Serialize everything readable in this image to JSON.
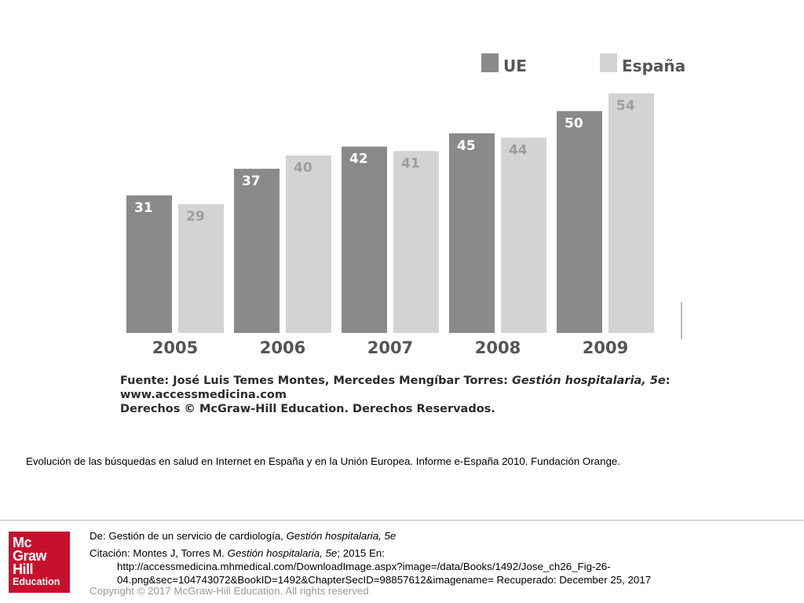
{
  "chart_data": {
    "type": "bar",
    "categories": [
      "2005",
      "2006",
      "2007",
      "2008",
      "2009"
    ],
    "series": [
      {
        "name": "UE",
        "values": [
          31,
          37,
          42,
          45,
          50
        ],
        "color": "#8a8a8a"
      },
      {
        "name": "España",
        "values": [
          29,
          40,
          41,
          44,
          54
        ],
        "color": "#d3d3d3"
      }
    ],
    "data_labels": true,
    "legend_position": "top-right",
    "ylim": [
      0,
      60
    ],
    "grid": false
  },
  "source": {
    "line1_prefix": "Fuente: José Luis Temes Montes, Mercedes Mengíbar Torres: ",
    "line1_book": "Gestión hospitalaria, 5e",
    "line1_suffix": ":",
    "line2": "www.accessmedicina.com",
    "line3": "Derechos © McGraw-Hill Education. Derechos Reservados."
  },
  "caption": "Evolución de las búsquedas en salud en Internet en España y en la Unión Europea. Informe e-España 2010. Fundación Orange.",
  "footer": {
    "logo": {
      "line1": "Mc",
      "line2": "Graw",
      "line3": "Hill",
      "line4": "Education",
      "color": "#c8102e"
    },
    "from_prefix": "De: Gestión de un servicio de cardiología, ",
    "from_book": "Gestión hospitalaria, 5e",
    "citation_prefix": "Citación: Montes J, Torres M. ",
    "citation_book": "Gestión hospitalaria, 5e",
    "citation_suffix": "; 2015 En:",
    "citation_url1": "http://accessmedicina.mhmedical.com/DownloadImage.aspx?image=/data/Books/1492/Jose_ch26_Fig-26-",
    "citation_url2": "04.png&sec=104743072&BookID=1492&ChapterSecID=98857612&imagename= Recuperado: December 25, 2017",
    "copyright": "Copyright © 2017 McGraw-Hill Education. All rights reserved"
  }
}
